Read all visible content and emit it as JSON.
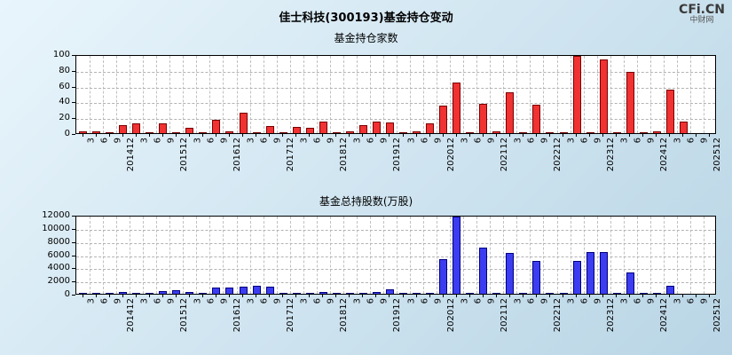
{
  "header": {
    "title": "佳士科技(300193)基金持仓变动",
    "logo": "CFi.CN",
    "logo_sub": "中财网"
  },
  "chart_data": [
    {
      "type": "bar",
      "title": "基金持仓家数",
      "legend_position": "none",
      "grid": "dashed",
      "bar_color": "#f03232",
      "bar_border": "#7a0000",
      "ylim": [
        0,
        100
      ],
      "yticks": [
        0,
        20,
        40,
        60,
        80,
        100
      ],
      "xlabel": "",
      "ylabel": "",
      "categories": [
        "3",
        "6",
        "9",
        "201412",
        "3",
        "6",
        "9",
        "201512",
        "3",
        "6",
        "9",
        "201612",
        "3",
        "6",
        "9",
        "201712",
        "3",
        "6",
        "9",
        "201812",
        "3",
        "6",
        "9",
        "201912",
        "3",
        "6",
        "9",
        "202012",
        "3",
        "6",
        "9",
        "202112",
        "3",
        "6",
        "9",
        "202212",
        "3",
        "6",
        "9",
        "202312",
        "3",
        "6",
        "9",
        "202412",
        "3",
        "6",
        "9",
        "202512"
      ],
      "values": [
        2,
        2,
        1,
        10,
        12,
        1,
        12,
        1,
        7,
        1,
        17,
        2,
        26,
        1,
        9,
        1,
        8,
        7,
        15,
        1,
        2,
        10,
        15,
        13,
        1,
        2,
        12,
        35,
        64,
        1,
        37,
        2,
        52,
        1,
        36,
        1,
        1,
        98,
        1,
        93,
        1,
        78,
        1,
        2,
        55,
        15,
        0,
        0
      ]
    },
    {
      "type": "bar",
      "title": "基金总持股数(万股)",
      "legend_position": "none",
      "grid": "dashed",
      "bar_color": "#3c3cf0",
      "bar_border": "#000080",
      "ylim": [
        0,
        12000
      ],
      "yticks": [
        0,
        2000,
        4000,
        6000,
        8000,
        10000,
        12000
      ],
      "xlabel": "",
      "ylabel": "",
      "categories": [
        "3",
        "6",
        "9",
        "201412",
        "3",
        "6",
        "9",
        "201512",
        "3",
        "6",
        "9",
        "201612",
        "3",
        "6",
        "9",
        "201712",
        "3",
        "6",
        "9",
        "201812",
        "3",
        "6",
        "9",
        "201912",
        "3",
        "6",
        "9",
        "202012",
        "3",
        "6",
        "9",
        "202112",
        "3",
        "6",
        "9",
        "202212",
        "3",
        "6",
        "9",
        "202312",
        "3",
        "6",
        "9",
        "202412",
        "3",
        "6",
        "9",
        "202512"
      ],
      "values": [
        100,
        150,
        100,
        250,
        200,
        100,
        400,
        500,
        300,
        100,
        900,
        1000,
        1100,
        1200,
        1100,
        150,
        200,
        150,
        300,
        100,
        100,
        150,
        250,
        700,
        50,
        100,
        150,
        5200,
        11700,
        100,
        7000,
        150,
        6200,
        100,
        5000,
        100,
        100,
        5000,
        6300,
        6400,
        100,
        3300,
        150,
        100,
        1200,
        0,
        0,
        0
      ]
    }
  ]
}
